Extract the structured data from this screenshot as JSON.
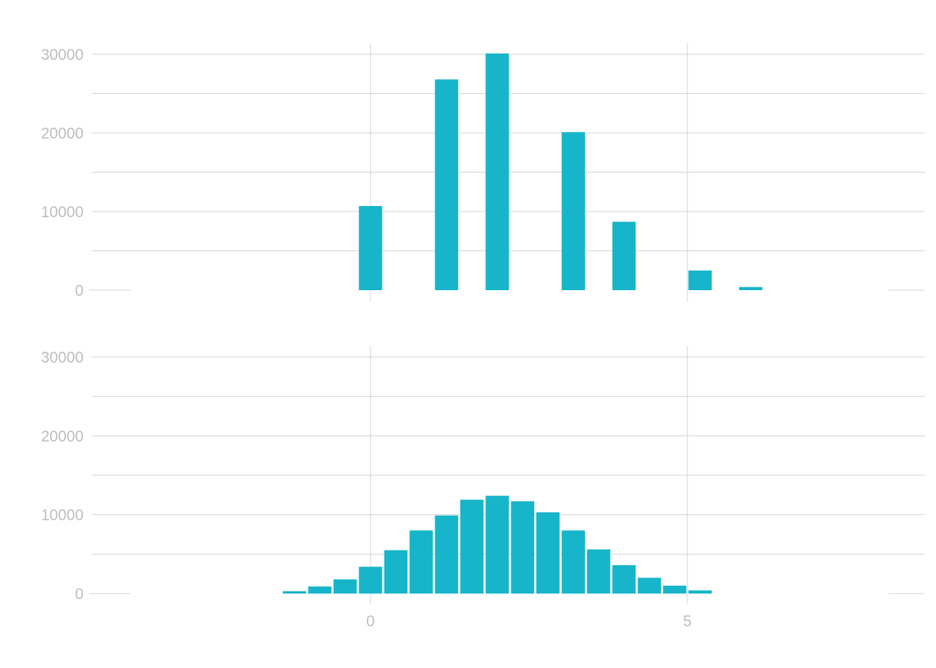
{
  "colors": {
    "bar": "#17b5c9",
    "grid": "#d0d0d0",
    "tick_text": "#bdbdbd",
    "background": "#ffffff"
  },
  "chart_data": [
    {
      "type": "bar",
      "title": "",
      "xlabel": "",
      "ylabel": "",
      "xlim": [
        -4.4,
        8.8
      ],
      "ylim": [
        0,
        30000
      ],
      "x_ticks": [
        0,
        5
      ],
      "y_ticks": [
        0,
        10000,
        20000,
        30000
      ],
      "y_tick_labels": [
        "0",
        "10000",
        "20000",
        "30000"
      ],
      "show_x_tick_labels": false,
      "grid": true,
      "bin_width": 0.4,
      "x": [
        0.0,
        1.2,
        2.0,
        3.2,
        4.0,
        5.2,
        6.0
      ],
      "values": [
        10700,
        26800,
        30100,
        20100,
        8700,
        2500,
        400
      ]
    },
    {
      "type": "bar",
      "title": "",
      "xlabel": "",
      "ylabel": "",
      "xlim": [
        -4.4,
        8.8
      ],
      "ylim": [
        0,
        30000
      ],
      "x_ticks": [
        0,
        5
      ],
      "x_tick_labels": [
        "0",
        "5"
      ],
      "y_ticks": [
        0,
        10000,
        20000,
        30000
      ],
      "y_tick_labels": [
        "0",
        "10000",
        "20000",
        "30000"
      ],
      "show_x_tick_labels": true,
      "grid": true,
      "bin_width": 0.4,
      "x": [
        -1.2,
        -0.8,
        -0.4,
        0.0,
        0.4,
        0.8,
        1.2,
        1.6,
        2.0,
        2.4,
        2.8,
        3.2,
        3.6,
        4.0,
        4.4,
        4.8,
        5.2
      ],
      "values": [
        300,
        900,
        1800,
        3400,
        5500,
        8000,
        9900,
        11900,
        12400,
        11700,
        10300,
        8000,
        5600,
        3600,
        2000,
        1000,
        400
      ]
    }
  ]
}
